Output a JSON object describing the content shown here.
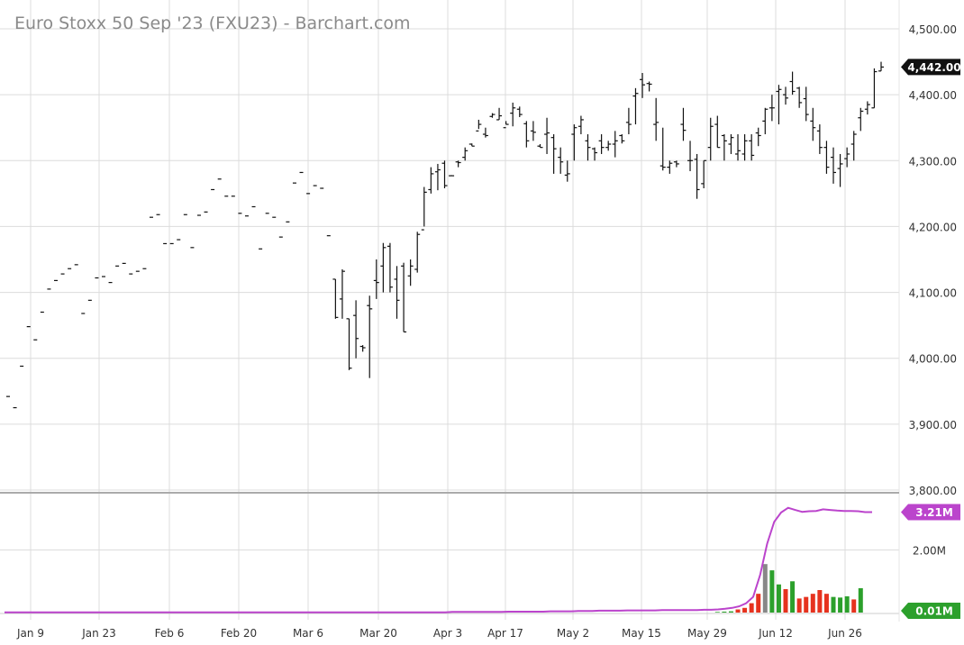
{
  "chart_data": {
    "type": "ohlc",
    "title": "Euro Stoxx 50 Sep '23 (FXU23) - Barchart.com",
    "last_price_label": "4,442.00",
    "y_ticks": [
      "4,500.00",
      "4,400.00",
      "4,300.00",
      "4,200.00",
      "4,100.00",
      "4,000.00",
      "3,900.00",
      "3,800.00"
    ],
    "ylim": [
      3800,
      4500
    ],
    "x_ticks": [
      "Jan 9",
      "Jan 23",
      "Feb 6",
      "Feb 20",
      "Mar 6",
      "Mar 20",
      "Apr 3",
      "Apr 17",
      "May 2",
      "May 15",
      "May 29",
      "Jun 12",
      "Jun 26"
    ],
    "candles": [
      [
        3942,
        3942,
        3942,
        3942
      ],
      [
        3925,
        3925,
        3925,
        3925
      ],
      [
        3988,
        3988,
        3988,
        3988
      ],
      [
        4048,
        4048,
        4048,
        4048
      ],
      [
        4028,
        4028,
        4028,
        4028
      ],
      [
        4070,
        4070,
        4070,
        4070
      ],
      [
        4105,
        4105,
        4105,
        4105
      ],
      [
        4118,
        4118,
        4118,
        4118
      ],
      [
        4128,
        4128,
        4128,
        4128
      ],
      [
        4136,
        4136,
        4136,
        4136
      ],
      [
        4142,
        4142,
        4142,
        4142
      ],
      [
        4068,
        4068,
        4068,
        4068
      ],
      [
        4088,
        4088,
        4088,
        4088
      ],
      [
        4122,
        4122,
        4122,
        4122
      ],
      [
        4124,
        4124,
        4124,
        4124
      ],
      [
        4115,
        4115,
        4115,
        4115
      ],
      [
        4140,
        4140,
        4140,
        4140
      ],
      [
        4144,
        4144,
        4144,
        4144
      ],
      [
        4128,
        4128,
        4128,
        4128
      ],
      [
        4132,
        4132,
        4132,
        4132
      ],
      [
        4136,
        4136,
        4136,
        4136
      ],
      [
        4214,
        4214,
        4214,
        4214
      ],
      [
        4218,
        4218,
        4218,
        4218
      ],
      [
        4174,
        4174,
        4174,
        4174
      ],
      [
        4174,
        4174,
        4174,
        4174
      ],
      [
        4180,
        4180,
        4180,
        4180
      ],
      [
        4218,
        4218,
        4218,
        4218
      ],
      [
        4168,
        4168,
        4168,
        4168
      ],
      [
        4217,
        4217,
        4217,
        4217
      ],
      [
        4222,
        4222,
        4222,
        4222
      ],
      [
        4256,
        4256,
        4256,
        4256
      ],
      [
        4272,
        4272,
        4272,
        4272
      ],
      [
        4246,
        4246,
        4246,
        4246
      ],
      [
        4246,
        4246,
        4246,
        4246
      ],
      [
        4220,
        4220,
        4220,
        4220
      ],
      [
        4216,
        4216,
        4216,
        4216
      ],
      [
        4230,
        4230,
        4230,
        4230
      ],
      [
        4166,
        4166,
        4166,
        4166
      ],
      [
        4220,
        4220,
        4220,
        4220
      ],
      [
        4214,
        4214,
        4214,
        4214
      ],
      [
        4184,
        4184,
        4184,
        4184
      ],
      [
        4207,
        4207,
        4207,
        4207
      ],
      [
        4266,
        4266,
        4266,
        4266
      ],
      [
        4282,
        4282,
        4282,
        4282
      ],
      [
        4250,
        4250,
        4250,
        4250
      ],
      [
        4262,
        4262,
        4262,
        4262
      ],
      [
        4258,
        4258,
        4258,
        4258
      ],
      [
        4186,
        4186,
        4186,
        4186
      ],
      [
        4120,
        4120,
        4060,
        4062
      ],
      [
        4090,
        4135,
        4060,
        4132
      ],
      [
        4060,
        4060,
        3982,
        3985
      ],
      [
        4065,
        4088,
        4000,
        4030
      ],
      [
        4018,
        4020,
        4010,
        4016
      ],
      [
        4080,
        4095,
        3970,
        4075
      ],
      [
        4118,
        4150,
        4090,
        4115
      ],
      [
        4140,
        4175,
        4100,
        4168
      ],
      [
        4170,
        4175,
        4100,
        4108
      ],
      [
        4120,
        4140,
        4060,
        4088
      ],
      [
        4140,
        4145,
        4040,
        4040
      ],
      [
        4125,
        4150,
        4110,
        4140
      ],
      [
        4135,
        4192,
        4130,
        4188
      ],
      [
        4195,
        4260,
        4200,
        4252
      ],
      [
        4256,
        4290,
        4250,
        4280
      ],
      [
        4283,
        4295,
        4255,
        4286
      ],
      [
        4296,
        4300,
        4258,
        4262
      ],
      [
        4277,
        4278,
        4277,
        4277
      ],
      [
        4298,
        4300,
        4290,
        4297
      ],
      [
        4305,
        4320,
        4300,
        4315
      ],
      [
        4325,
        4326,
        4322,
        4322
      ],
      [
        4345,
        4362,
        4348,
        4355
      ],
      [
        4340,
        4350,
        4335,
        4338
      ],
      [
        4367,
        4372,
        4365,
        4370
      ],
      [
        4362,
        4380,
        4362,
        4368
      ],
      [
        4350,
        4360,
        4355,
        4355
      ],
      [
        4372,
        4388,
        4352,
        4380
      ],
      [
        4378,
        4382,
        4366,
        4370
      ],
      [
        4356,
        4360,
        4320,
        4330
      ],
      [
        4345,
        4360,
        4330,
        4343
      ],
      [
        4322,
        4325,
        4320,
        4320
      ],
      [
        4340,
        4365,
        4310,
        4342
      ],
      [
        4335,
        4340,
        4280,
        4318
      ],
      [
        4305,
        4320,
        4280,
        4298
      ],
      [
        4278,
        4300,
        4268,
        4280
      ],
      [
        4340,
        4355,
        4300,
        4350
      ],
      [
        4352,
        4368,
        4340,
        4362
      ],
      [
        4330,
        4340,
        4300,
        4320
      ],
      [
        4318,
        4320,
        4300,
        4312
      ],
      [
        4330,
        4340,
        4310,
        4320
      ],
      [
        4320,
        4330,
        4315,
        4325
      ],
      [
        4325,
        4345,
        4305,
        4330
      ],
      [
        4338,
        4340,
        4326,
        4330
      ],
      [
        4358,
        4380,
        4340,
        4355
      ],
      [
        4398,
        4410,
        4355,
        4402
      ],
      [
        4423,
        4433,
        4395,
        4415
      ],
      [
        4417,
        4420,
        4405,
        4416
      ],
      [
        4355,
        4395,
        4330,
        4358
      ],
      [
        4292,
        4350,
        4285,
        4290
      ],
      [
        4290,
        4300,
        4280,
        4296
      ],
      [
        4298,
        4300,
        4290,
        4295
      ],
      [
        4355,
        4380,
        4330,
        4346
      ],
      [
        4300,
        4330,
        4284,
        4300
      ],
      [
        4302,
        4310,
        4242,
        4256
      ],
      [
        4265,
        4300,
        4258,
        4300
      ],
      [
        4320,
        4365,
        4300,
        4352
      ],
      [
        4355,
        4368,
        4320,
        4320
      ],
      [
        4338,
        4340,
        4300,
        4330
      ],
      [
        4325,
        4340,
        4310,
        4335
      ],
      [
        4310,
        4340,
        4300,
        4315
      ],
      [
        4310,
        4340,
        4300,
        4330
      ],
      [
        4330,
        4340,
        4300,
        4308
      ],
      [
        4342,
        4350,
        4322,
        4338
      ],
      [
        4360,
        4380,
        4340,
        4378
      ],
      [
        4380,
        4400,
        4360,
        4380
      ],
      [
        4405,
        4415,
        4355,
        4408
      ],
      [
        4400,
        4412,
        4385,
        4395
      ],
      [
        4420,
        4435,
        4400,
        4405
      ],
      [
        4410,
        4412,
        4380,
        4388
      ],
      [
        4394,
        4412,
        4360,
        4370
      ],
      [
        4360,
        4380,
        4330,
        4350
      ],
      [
        4345,
        4355,
        4310,
        4320
      ],
      [
        4320,
        4330,
        4280,
        4290
      ],
      [
        4305,
        4320,
        4265,
        4282
      ],
      [
        4288,
        4310,
        4260,
        4295
      ],
      [
        4303,
        4320,
        4290,
        4310
      ],
      [
        4325,
        4345,
        4300,
        4340
      ],
      [
        4365,
        4380,
        4345,
        4375
      ],
      [
        4378,
        4390,
        4370,
        4385
      ],
      [
        4380,
        4440,
        4380,
        4435
      ],
      [
        4436,
        4450,
        4436,
        4442
      ]
    ],
    "volume_ticks": [
      "3.21M",
      "2.00M",
      "0.01M"
    ],
    "volume_labels": {
      "current": "3.21M",
      "mid": "2.00M",
      "low": "0.01M"
    },
    "volume_max": 3.6,
    "volume_bars": [
      {
        "v": 0.02,
        "c": "#2ca02c"
      },
      {
        "v": 0.03,
        "c": "#2ca02c"
      },
      {
        "v": 0.04,
        "c": "#2ca02c"
      },
      {
        "v": 0.1,
        "c": "#e6321e"
      },
      {
        "v": 0.15,
        "c": "#e6321e"
      },
      {
        "v": 0.3,
        "c": "#e6321e"
      },
      {
        "v": 0.6,
        "c": "#e6321e"
      },
      {
        "v": 1.55,
        "c": "#888888"
      },
      {
        "v": 1.35,
        "c": "#2ca02c"
      },
      {
        "v": 0.9,
        "c": "#2ca02c"
      },
      {
        "v": 0.75,
        "c": "#e6321e"
      },
      {
        "v": 1.0,
        "c": "#2ca02c"
      },
      {
        "v": 0.45,
        "c": "#e6321e"
      },
      {
        "v": 0.5,
        "c": "#e6321e"
      },
      {
        "v": 0.6,
        "c": "#e6321e"
      },
      {
        "v": 0.72,
        "c": "#e6321e"
      },
      {
        "v": 0.6,
        "c": "#e6321e"
      },
      {
        "v": 0.5,
        "c": "#2ca02c"
      },
      {
        "v": 0.48,
        "c": "#2ca02c"
      },
      {
        "v": 0.52,
        "c": "#2ca02c"
      },
      {
        "v": 0.42,
        "c": "#e6321e"
      },
      {
        "v": 0.78,
        "c": "#2ca02c"
      }
    ],
    "open_interest": [
      0.01,
      0.01,
      0.01,
      0.01,
      0.01,
      0.01,
      0.01,
      0.01,
      0.01,
      0.01,
      0.01,
      0.01,
      0.01,
      0.01,
      0.01,
      0.01,
      0.01,
      0.01,
      0.01,
      0.01,
      0.01,
      0.01,
      0.01,
      0.01,
      0.01,
      0.01,
      0.01,
      0.01,
      0.01,
      0.01,
      0.01,
      0.01,
      0.01,
      0.01,
      0.01,
      0.01,
      0.01,
      0.01,
      0.01,
      0.01,
      0.01,
      0.01,
      0.01,
      0.01,
      0.01,
      0.01,
      0.01,
      0.01,
      0.01,
      0.01,
      0.01,
      0.01,
      0.01,
      0.01,
      0.01,
      0.01,
      0.01,
      0.01,
      0.01,
      0.01,
      0.01,
      0.01,
      0.01,
      0.01,
      0.02,
      0.02,
      0.02,
      0.02,
      0.02,
      0.02,
      0.02,
      0.02,
      0.03,
      0.03,
      0.03,
      0.03,
      0.03,
      0.03,
      0.04,
      0.04,
      0.04,
      0.04,
      0.05,
      0.05,
      0.05,
      0.06,
      0.06,
      0.06,
      0.06,
      0.07,
      0.07,
      0.07,
      0.07,
      0.07,
      0.08,
      0.08,
      0.08,
      0.08,
      0.08,
      0.08,
      0.09,
      0.09,
      0.1,
      0.12,
      0.15,
      0.2,
      0.3,
      0.5,
      1.2,
      2.2,
      2.9,
      3.2,
      3.35,
      3.28,
      3.22,
      3.24,
      3.25,
      3.3,
      3.28,
      3.26,
      3.25,
      3.25,
      3.24,
      3.21,
      3.21
    ],
    "colors": {
      "up": "#2ca02c",
      "down": "#e6321e",
      "oi_line": "#bb44cc",
      "price_badge": "#111111"
    }
  }
}
